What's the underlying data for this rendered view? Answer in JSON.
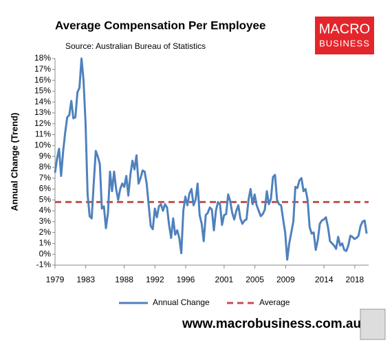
{
  "chart_data": {
    "type": "line",
    "title": "Average Compensation Per Employee",
    "subtitle": "Source: Australian Bureau of Statistics",
    "y_label": "Annual Change (Trend)",
    "logo": [
      "MACRO",
      "BUSINESS"
    ],
    "footer": "www.macrobusiness.com.au",
    "xlim": [
      1979,
      2019.8
    ],
    "ylim": [
      -1,
      18
    ],
    "xticks": [
      1979,
      1983,
      1988,
      1992,
      1996,
      2001,
      2005,
      2009,
      2014,
      2018
    ],
    "yticks": [
      {
        "value": -1,
        "label": "-1%"
      },
      {
        "value": 0,
        "label": "0%"
      },
      {
        "value": 1,
        "label": "1%"
      },
      {
        "value": 2,
        "label": "2%"
      },
      {
        "value": 3,
        "label": "3%"
      },
      {
        "value": 4,
        "label": "4%"
      },
      {
        "value": 5,
        "label": "5%"
      },
      {
        "value": 6,
        "label": "6%"
      },
      {
        "value": 7,
        "label": "7%"
      },
      {
        "value": 8,
        "label": "8%"
      },
      {
        "value": 9,
        "label": "9%"
      },
      {
        "value": 10,
        "label": "10%"
      },
      {
        "value": 11,
        "label": "11%"
      },
      {
        "value": 12,
        "label": "12%"
      },
      {
        "value": 13,
        "label": "13%"
      },
      {
        "value": 14,
        "label": "14%"
      },
      {
        "value": 15,
        "label": "15%"
      },
      {
        "value": 16,
        "label": "16%"
      },
      {
        "value": 17,
        "label": "17%"
      },
      {
        "value": 18,
        "label": "18%"
      }
    ],
    "x": [
      1979,
      1979.265,
      1979.53,
      1979.795,
      1980.06,
      1980.325,
      1980.59,
      1980.855,
      1981.12,
      1981.385,
      1981.65,
      1981.915,
      1982.18,
      1982.445,
      1982.71,
      1982.975,
      1983.24,
      1983.505,
      1983.77,
      1984.035,
      1984.3,
      1984.565,
      1984.83,
      1985.095,
      1985.36,
      1985.625,
      1985.89,
      1986.155,
      1986.42,
      1986.685,
      1986.95,
      1987.215,
      1987.48,
      1987.745,
      1988.01,
      1988.275,
      1988.54,
      1988.805,
      1989.07,
      1989.335,
      1989.6,
      1989.865,
      1990.13,
      1990.395,
      1990.66,
      1990.925,
      1991.19,
      1991.455,
      1991.72,
      1991.985,
      1992.25,
      1992.515,
      1992.78,
      1993.045,
      1993.31,
      1993.575,
      1993.84,
      1994.105,
      1994.37,
      1994.635,
      1994.9,
      1995.165,
      1995.43,
      1995.695,
      1995.96,
      1996.225,
      1996.49,
      1996.755,
      1997.02,
      1997.285,
      1997.55,
      1997.815,
      1998.08,
      1998.345,
      1998.61,
      1998.875,
      1999.14,
      1999.405,
      1999.67,
      1999.935,
      2000.2,
      2000.465,
      2000.73,
      2000.995,
      2001.26,
      2001.525,
      2001.79,
      2002.055,
      2002.32,
      2002.585,
      2002.85,
      2003.115,
      2003.38,
      2003.645,
      2003.91,
      2004.175,
      2004.44,
      2004.705,
      2004.97,
      2005.235,
      2005.5,
      2005.765,
      2006.03,
      2006.295,
      2006.56,
      2006.825,
      2007.09,
      2007.355,
      2007.62,
      2007.885,
      2008.15,
      2008.415,
      2008.68,
      2008.945,
      2009.21,
      2009.475,
      2009.74,
      2010.005,
      2010.27,
      2010.535,
      2010.8,
      2011.065,
      2011.33,
      2011.595,
      2011.86,
      2012.125,
      2012.39,
      2012.655,
      2012.92,
      2013.185,
      2013.45,
      2013.715,
      2013.98,
      2014.245,
      2014.51,
      2014.775,
      2015.04,
      2015.305,
      2015.57,
      2015.835,
      2016.1,
      2016.365,
      2016.63,
      2016.895,
      2017.16,
      2017.425,
      2017.69,
      2017.955,
      2018.22,
      2018.485,
      2018.75,
      2019.015,
      2019.28,
      2019.545
    ],
    "series": [
      {
        "name": "Annual Change",
        "color": "#4f81bd",
        "values": [
          7.5,
          8.8,
          9.7,
          7.2,
          9.5,
          11.2,
          12.6,
          12.8,
          14.1,
          12.5,
          12.6,
          14.9,
          15.3,
          18.0,
          16.0,
          12.0,
          5.5,
          3.5,
          3.3,
          6.5,
          9.5,
          9.0,
          8.3,
          4.2,
          4.4,
          2.4,
          3.8,
          7.6,
          5.8,
          7.6,
          6.0,
          5.0,
          6.0,
          6.5,
          6.2,
          7.2,
          5.4,
          7.3,
          8.6,
          7.8,
          9.1,
          6.5,
          7.0,
          7.7,
          7.6,
          6.5,
          4.5,
          2.6,
          2.3,
          4.2,
          3.4,
          4.4,
          4.6,
          4.0,
          4.6,
          4.3,
          2.7,
          1.5,
          3.3,
          1.8,
          2.2,
          1.5,
          0.1,
          4.0,
          5.3,
          4.5,
          5.6,
          6.0,
          4.5,
          5.0,
          6.5,
          3.6,
          2.8,
          1.2,
          3.6,
          3.8,
          4.3,
          4.1,
          2.2,
          4.0,
          4.8,
          4.6,
          2.7,
          3.6,
          3.7,
          5.5,
          4.9,
          3.8,
          3.2,
          4.0,
          4.5,
          3.3,
          2.8,
          3.1,
          3.2,
          5.0,
          6.0,
          4.6,
          5.5,
          4.5,
          4.0,
          3.5,
          3.7,
          4.1,
          5.8,
          4.6,
          5.1,
          7.1,
          7.3,
          5.0,
          4.6,
          4.5,
          3.2,
          2.0,
          -0.5,
          1.0,
          2.0,
          3.0,
          6.2,
          6.1,
          6.8,
          7.0,
          5.8,
          6.0,
          5.0,
          2.5,
          1.9,
          2.0,
          0.4,
          1.3,
          2.8,
          3.1,
          3.2,
          3.4,
          2.5,
          1.2,
          1.0,
          0.8,
          0.5,
          1.6,
          0.8,
          1.0,
          0.4,
          0.3,
          0.8,
          1.7,
          1.6,
          1.4,
          1.5,
          1.7,
          2.6,
          3.0,
          3.1,
          1.9
        ]
      }
    ],
    "reference_line": {
      "name": "Average",
      "value": 4.8,
      "color": "#c0504d"
    }
  }
}
